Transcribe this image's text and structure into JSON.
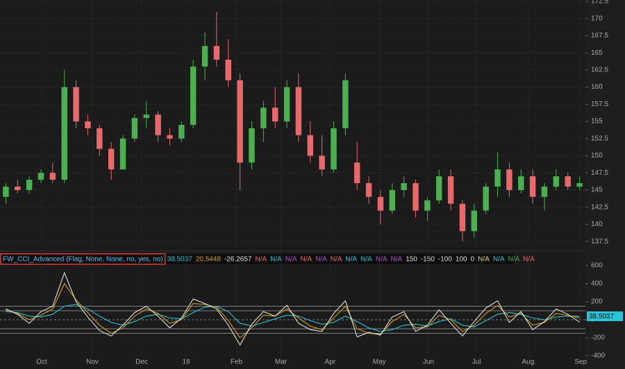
{
  "chart_data": [
    {
      "type": "candlestick",
      "ohlc": [
        [
          144,
          146,
          143,
          145.5
        ],
        [
          145.5,
          146.5,
          144.5,
          145
        ],
        [
          145,
          147,
          144.5,
          146.5
        ],
        [
          146.5,
          148,
          146,
          147.5
        ],
        [
          147.5,
          149,
          146,
          146.5
        ],
        [
          146.5,
          162.5,
          146,
          160
        ],
        [
          160,
          161,
          154,
          155
        ],
        [
          155,
          156,
          153,
          154
        ],
        [
          154,
          154.5,
          150,
          151
        ],
        [
          151,
          152,
          146.5,
          148
        ],
        [
          148,
          153,
          148,
          152.5
        ],
        [
          152.5,
          156,
          152,
          155.5
        ],
        [
          155.5,
          158,
          154,
          156
        ],
        [
          156,
          156.5,
          152,
          153
        ],
        [
          153,
          154,
          151.5,
          152.5
        ],
        [
          152.5,
          155,
          152,
          154.5
        ],
        [
          154.5,
          164,
          154,
          163
        ],
        [
          163,
          168,
          161,
          166
        ],
        [
          166,
          171,
          163,
          164
        ],
        [
          164,
          167,
          160,
          161
        ],
        [
          161,
          162,
          145,
          149
        ],
        [
          149,
          155,
          148,
          154
        ],
        [
          154,
          158,
          152,
          157
        ],
        [
          157,
          160,
          154,
          155
        ],
        [
          155,
          161,
          154,
          160
        ],
        [
          160,
          162,
          152,
          153
        ],
        [
          153,
          155,
          149,
          150
        ],
        [
          150,
          153,
          147,
          148
        ],
        [
          148,
          155,
          147.5,
          154
        ],
        [
          154,
          162,
          153,
          161
        ],
        [
          149,
          152,
          145,
          146
        ],
        [
          146,
          147,
          143,
          144
        ],
        [
          144,
          145,
          140,
          142
        ],
        [
          142,
          146,
          141.5,
          145
        ],
        [
          145,
          147,
          144,
          146
        ],
        [
          146,
          146.5,
          141,
          142
        ],
        [
          142,
          144,
          140.5,
          143.5
        ],
        [
          143.5,
          148,
          143,
          147
        ],
        [
          147,
          148,
          142,
          143
        ],
        [
          143,
          143.5,
          137.5,
          139
        ],
        [
          139,
          143,
          138,
          142
        ],
        [
          142,
          146,
          141.5,
          145.5
        ],
        [
          145.5,
          150.5,
          144,
          148
        ],
        [
          148,
          149,
          144,
          145
        ],
        [
          145,
          148,
          144.5,
          147
        ],
        [
          147,
          148,
          143,
          144
        ],
        [
          144,
          146,
          142,
          145.5
        ],
        [
          145.5,
          148,
          145,
          147
        ],
        [
          147,
          147.5,
          145,
          145.5
        ],
        [
          145.5,
          147,
          145,
          146
        ]
      ],
      "up_color": "#4caf50",
      "down_color": "#e8696b",
      "xlim": [
        -0.5,
        49.5
      ],
      "xticks": [
        {
          "value": 3.06,
          "label": "Oct"
        },
        {
          "value": 7.39,
          "label": "Nov"
        },
        {
          "value": 11.6,
          "label": "Dec"
        },
        {
          "value": 15.4,
          "label": "18"
        },
        {
          "value": 19.7,
          "label": "Feb"
        },
        {
          "value": 23.5,
          "label": "Mar"
        },
        {
          "value": 27.7,
          "label": "Apr"
        },
        {
          "value": 31.9,
          "label": "May"
        },
        {
          "value": 36.1,
          "label": "Jun"
        },
        {
          "value": 40.2,
          "label": "Jul"
        },
        {
          "value": 44.6,
          "label": "Aug"
        },
        {
          "value": 49.1,
          "label": "Sep"
        }
      ],
      "ylim": [
        136.3,
        172.7
      ],
      "yticks": [
        137.5,
        140,
        142.5,
        145,
        147.5,
        150,
        152.5,
        155,
        157.5,
        160,
        162.5,
        165,
        167.5,
        170,
        172.5
      ],
      "grid": true
    },
    {
      "type": "line",
      "title": "FW_CCI_Advanced (Flag, None, None, no, yes, no)",
      "series": [
        {
          "color": "#26c6da",
          "values": [
            90,
            80,
            40,
            30,
            60,
            150,
            170,
            120,
            40,
            -30,
            -60,
            -20,
            40,
            60,
            20,
            10,
            80,
            140,
            150,
            90,
            -40,
            -70,
            -30,
            10,
            50,
            40,
            -10,
            -50,
            -30,
            40,
            -20,
            -90,
            -130,
            -110,
            -60,
            -50,
            -70,
            -20,
            10,
            -60,
            -80,
            -10,
            60,
            80,
            60,
            20,
            0,
            30,
            40,
            38.5037
          ]
        },
        {
          "color": "#d4a017",
          "values": [
            110,
            70,
            0,
            50,
            120,
            400,
            220,
            80,
            -60,
            -150,
            -90,
            40,
            120,
            70,
            -40,
            0,
            180,
            170,
            140,
            -10,
            -200,
            -90,
            50,
            40,
            120,
            20,
            -70,
            -110,
            20,
            150,
            -100,
            -150,
            -160,
            -20,
            60,
            -90,
            -80,
            50,
            0,
            -130,
            -60,
            70,
            160,
            30,
            70,
            -60,
            -30,
            70,
            50,
            20.5448
          ]
        },
        {
          "color": "#e0e0e0",
          "values": [
            120,
            60,
            -40,
            90,
            150,
            520,
            200,
            30,
            -120,
            -180,
            -60,
            80,
            150,
            40,
            -90,
            20,
            230,
            180,
            120,
            -60,
            -280,
            -50,
            90,
            40,
            160,
            -40,
            -110,
            -130,
            70,
            210,
            -190,
            -140,
            -170,
            30,
            90,
            -130,
            -60,
            110,
            -40,
            -180,
            -20,
            130,
            210,
            -30,
            90,
            -110,
            -20,
            120,
            60,
            -26.2657
          ]
        }
      ],
      "status_items_1": [
        {
          "label": "N/A",
          "color": "#e8696b"
        },
        {
          "label": "N/A",
          "color": "#26c6da"
        },
        {
          "label": "N/A",
          "color": "#b04fc9"
        },
        {
          "label": "N/A",
          "color": "#e8696b"
        },
        {
          "label": "N/A",
          "color": "#b04fc9"
        },
        {
          "label": "N/A",
          "color": "#e8696b"
        },
        {
          "label": "N/A",
          "color": "#26c6da"
        },
        {
          "label": "N/A",
          "color": "#26c6da"
        },
        {
          "label": "N/A",
          "color": "#b04fc9"
        },
        {
          "label": "N/A",
          "color": "#b04fc9"
        }
      ],
      "levels": [
        150,
        -150,
        -100,
        100,
        0
      ],
      "level_color": "#dddddd",
      "status_items_2": [
        {
          "label": "N/A",
          "color": "#e0d080"
        },
        {
          "label": "N/A",
          "color": "#26c6da"
        },
        {
          "label": "N/A",
          "color": "#4caf50"
        },
        {
          "label": "N/A",
          "color": "#e8696b"
        }
      ],
      "xlim": [
        -0.5,
        49.5
      ],
      "ylim": [
        -423,
        615
      ],
      "yticks": [
        600,
        400,
        200,
        0,
        -200,
        -400
      ]
    }
  ]
}
